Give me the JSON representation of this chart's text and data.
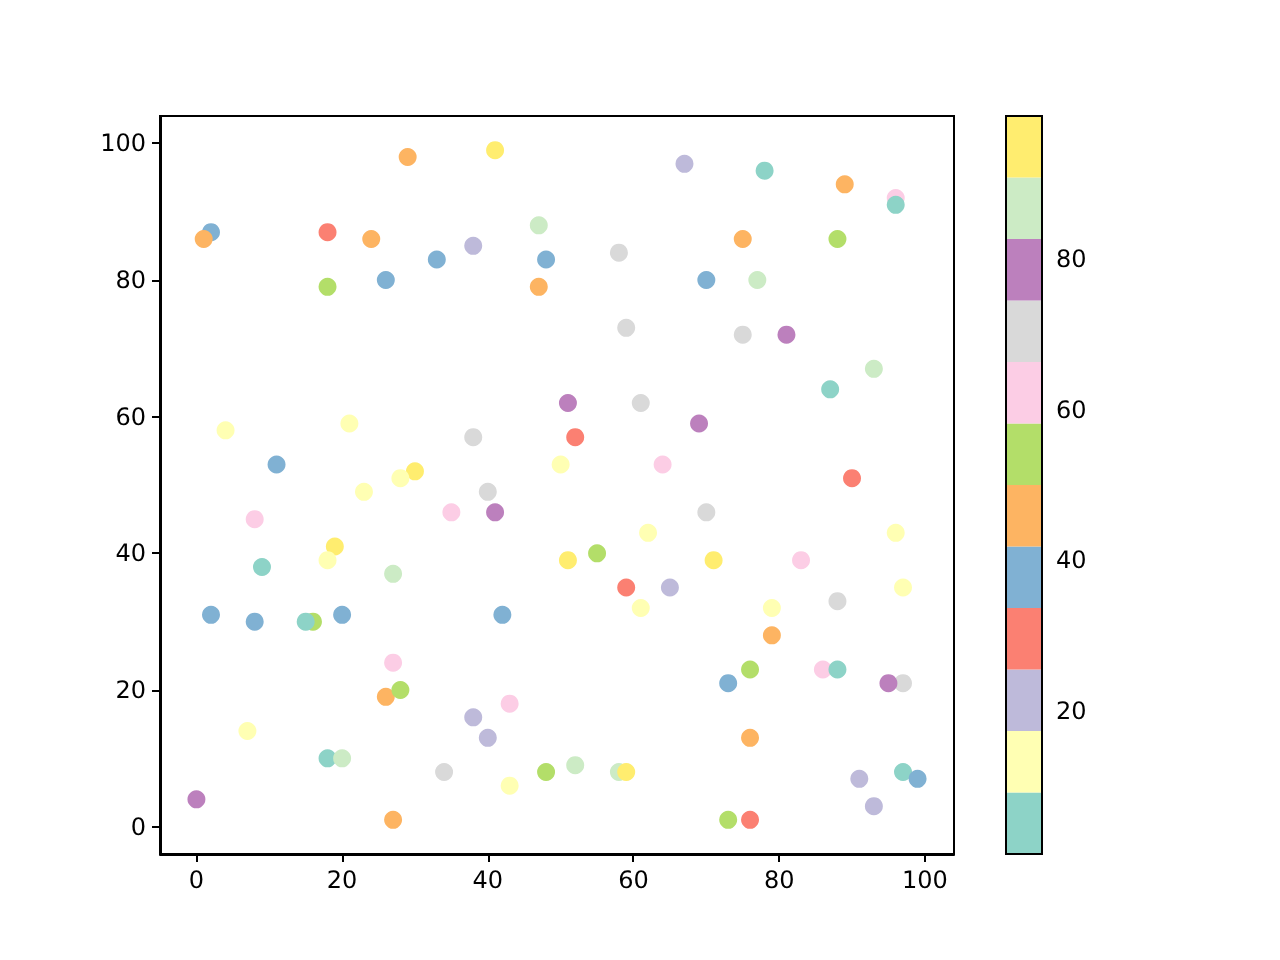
{
  "chart_data": {
    "type": "scatter",
    "x": [
      2,
      1,
      18,
      24,
      29,
      41,
      47,
      38,
      33,
      48,
      18,
      26,
      47,
      4,
      21,
      11,
      38,
      30,
      28,
      23,
      40,
      50,
      67,
      78,
      89,
      96,
      96,
      75,
      88,
      58,
      70,
      77,
      59,
      75,
      81,
      93,
      87,
      51,
      61,
      69,
      52,
      64,
      90,
      8,
      35,
      41,
      19,
      18,
      9,
      27,
      2,
      8,
      16,
      15,
      20,
      42,
      27,
      26,
      28,
      43,
      38,
      40,
      7,
      18,
      20,
      34,
      48,
      43,
      0,
      27,
      70,
      62,
      96,
      51,
      55,
      71,
      83,
      59,
      65,
      97,
      61,
      79,
      88,
      79,
      76,
      73,
      86,
      88,
      97,
      95,
      76,
      52,
      58,
      59,
      97,
      99,
      91,
      93,
      73,
      76
    ],
    "values": [
      87,
      86,
      87,
      86,
      98,
      99,
      88,
      85,
      83,
      83,
      79,
      80,
      79,
      58,
      59,
      53,
      57,
      52,
      51,
      49,
      49,
      53,
      97,
      96,
      94,
      92,
      91,
      86,
      86,
      84,
      80,
      80,
      73,
      72,
      72,
      67,
      64,
      62,
      62,
      59,
      57,
      53,
      51,
      45,
      46,
      46,
      41,
      39,
      38,
      37,
      31,
      30,
      30,
      30,
      31,
      31,
      24,
      19,
      20,
      18,
      16,
      13,
      14,
      10,
      10,
      8,
      8,
      6,
      4,
      1,
      46,
      43,
      43,
      39,
      40,
      39,
      39,
      35,
      35,
      35,
      32,
      32,
      33,
      28,
      23,
      21,
      23,
      23,
      21,
      21,
      13,
      9,
      8,
      8,
      8,
      7,
      7,
      3,
      1,
      1
    ],
    "cvalues": [
      38,
      46,
      30,
      46,
      46,
      95,
      87,
      21,
      38,
      38,
      54,
      38,
      46,
      13,
      13,
      38,
      70,
      95,
      13,
      13,
      70,
      13,
      21,
      5,
      46,
      62,
      5,
      46,
      54,
      70,
      38,
      87,
      70,
      70,
      79,
      87,
      5,
      79,
      70,
      79,
      30,
      62,
      30,
      62,
      62,
      79,
      95,
      13,
      5,
      87,
      38,
      38,
      54,
      5,
      38,
      38,
      62,
      46,
      54,
      62,
      21,
      21,
      13,
      5,
      87,
      70,
      54,
      13,
      79,
      46,
      70,
      13,
      13,
      95,
      54,
      95,
      62,
      30,
      21,
      13,
      13,
      13,
      70,
      46,
      54,
      38,
      62,
      5,
      70,
      79,
      46,
      87,
      87,
      95,
      5,
      38,
      21,
      21,
      54,
      30
    ],
    "xlim": [
      -5,
      104
    ],
    "ylim": [
      -4,
      104
    ],
    "xticks": [
      0,
      20,
      40,
      60,
      80,
      100
    ],
    "yticks": [
      0,
      20,
      40,
      60,
      80,
      100
    ],
    "clim": [
      1,
      99
    ],
    "cticks": [
      20,
      40,
      60,
      80
    ],
    "marker": "circle"
  }
}
